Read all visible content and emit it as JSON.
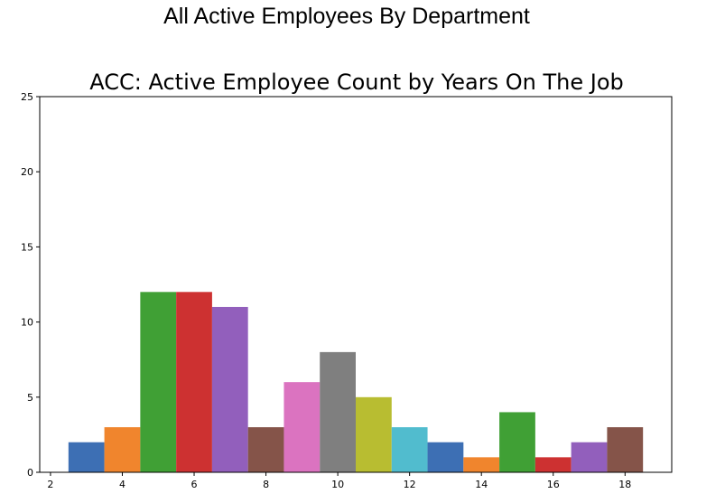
{
  "page": {
    "heading": "All Active Employees By Department"
  },
  "chart_data": {
    "type": "bar",
    "title": "ACC: Active Employee Count by Years On The Job",
    "xlabel": "",
    "ylabel": "",
    "x": [
      3,
      4,
      5,
      6,
      7,
      8,
      9,
      10,
      11,
      12,
      13,
      14,
      15,
      16,
      17,
      18
    ],
    "values": [
      2,
      3,
      12,
      12,
      11,
      3,
      6,
      8,
      5,
      3,
      2,
      1,
      4,
      1,
      2,
      3
    ],
    "bar_width": 1,
    "colors": [
      "#3d6fb4",
      "#f0852d",
      "#40a035",
      "#cd3131",
      "#925fbc",
      "#855449",
      "#db73c0",
      "#7f7f7f",
      "#b8bd31",
      "#51bcce",
      "#3d6fb4",
      "#f0852d",
      "#40a035",
      "#cd3131",
      "#925fbc",
      "#855449"
    ],
    "xlim": [
      1.7,
      19.3
    ],
    "ylim": [
      0,
      25
    ],
    "xticks": [
      2,
      4,
      6,
      8,
      10,
      12,
      14,
      16,
      18
    ],
    "yticks": [
      0,
      5,
      10,
      15,
      20,
      25
    ],
    "grid": false,
    "legend": "none"
  }
}
